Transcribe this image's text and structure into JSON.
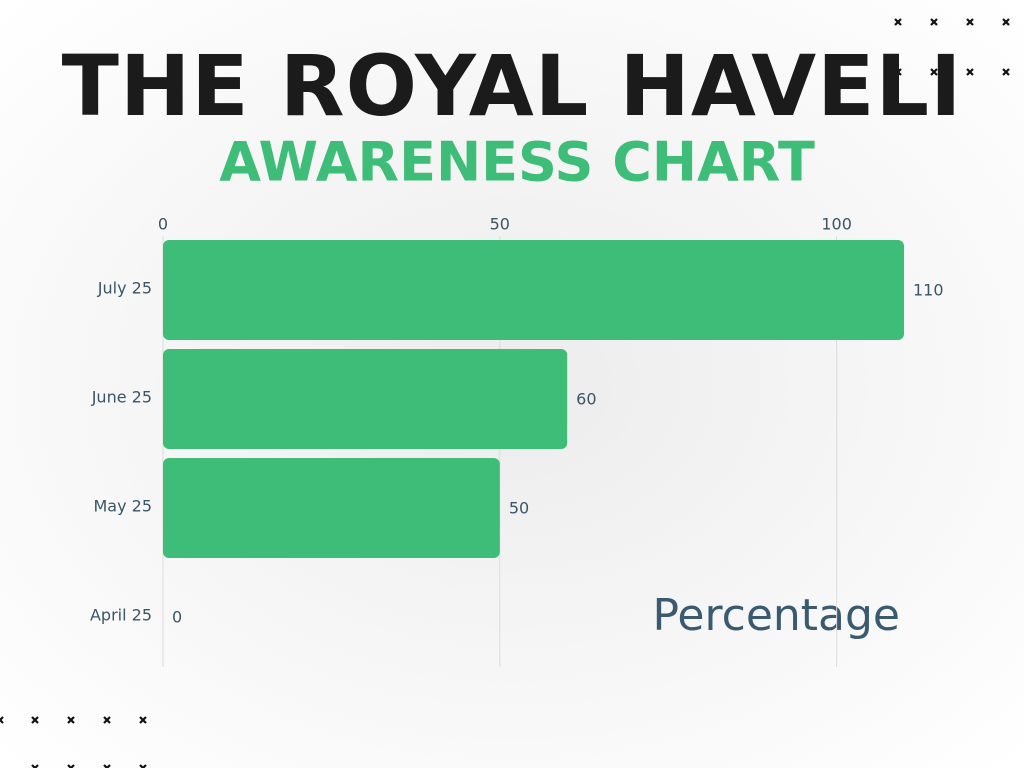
{
  "chart_data": {
    "type": "bar",
    "orientation": "horizontal",
    "title": "THE ROYAL HAVELI",
    "subtitle": "AWARENESS CHART",
    "xlabel": "Percentage",
    "categories": [
      "July 25",
      "June 25",
      "May 25",
      "April 25"
    ],
    "values": [
      110,
      60,
      50,
      0
    ],
    "color": "#3dbd77",
    "xlim": [
      0,
      110
    ],
    "xticks": [
      0,
      50,
      100
    ],
    "grid": true
  }
}
